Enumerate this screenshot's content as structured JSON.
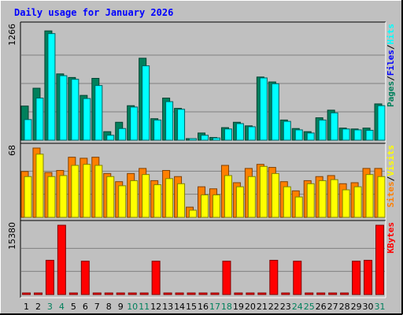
{
  "chart_data": {
    "type": "bar",
    "title": "Daily usage for January 2026",
    "days": [
      "1",
      "2",
      "3",
      "4",
      "5",
      "6",
      "7",
      "8",
      "9",
      "10",
      "11",
      "12",
      "13",
      "14",
      "15",
      "16",
      "17",
      "18",
      "19",
      "20",
      "21",
      "22",
      "23",
      "24",
      "25",
      "26",
      "27",
      "28",
      "29",
      "30",
      "31"
    ],
    "weekend_days": [
      "3",
      "4",
      "10",
      "11",
      "17",
      "18",
      "24",
      "25",
      "31"
    ],
    "colors": {
      "title": "#0000ff",
      "pages": "#00805c",
      "files": "#0000ff",
      "hits": "#00ffff",
      "sites": "#ff8000",
      "visits": "#ffff00",
      "kbytes": "#ff0000",
      "weekend": "#00805c"
    },
    "panels": [
      {
        "id": "usage",
        "max_label": "1266",
        "ylim": [
          0,
          1266
        ],
        "series_labels": [
          "Pages",
          "Files",
          "Hits"
        ],
        "series": [
          {
            "name": "Pages",
            "values": [
              381,
              580,
              1220,
              740,
              700,
              500,
              690,
              95,
              200,
              385,
              915,
              240,
              470,
              355,
              0,
              80,
              30,
              140,
              200,
              160,
              705,
              650,
              225,
              130,
              95,
              250,
              335,
              135,
              125,
              135,
              405
            ]
          },
          {
            "name": "Files",
            "values": [
              0,
              0,
              0,
              0,
              0,
              0,
              0,
              0,
              0,
              0,
              0,
              0,
              0,
              0,
              0,
              0,
              0,
              0,
              0,
              0,
              0,
              0,
              0,
              0,
              0,
              0,
              0,
              0,
              0,
              0,
              0
            ]
          },
          {
            "name": "Hits",
            "values": [
              230,
              470,
              1190,
              720,
              680,
              465,
              610,
              55,
              130,
              370,
              830,
              225,
              430,
              345,
              15,
              55,
              25,
              125,
              185,
              150,
              695,
              630,
              210,
              115,
              80,
              225,
              305,
              125,
              115,
              110,
              385
            ]
          }
        ]
      },
      {
        "id": "visitors",
        "max_label": "68",
        "ylim": [
          0,
          68
        ],
        "series_labels": [
          "Sites",
          "Visits"
        ],
        "series": [
          {
            "name": "Sites",
            "values": [
              45,
              68,
              44,
              46,
              59,
              58,
              59,
              43,
              35,
              43,
              48,
              36,
              46,
              40,
              10,
              30,
              28,
              51,
              34,
              48,
              52,
              49,
              35,
              26,
              36,
              40,
              41,
              33,
              34,
              48,
              48
            ]
          },
          {
            "name": "Visits",
            "values": [
              40,
              62,
              40,
              41,
              51,
              52,
              51,
              40,
              31,
              36,
              42,
              32,
              38,
              33,
              7,
              22,
              22,
              41,
              30,
              40,
              50,
              43,
              30,
              20,
              33,
              36,
              37,
              27,
              30,
              42,
              40
            ]
          }
        ]
      },
      {
        "id": "kbytes",
        "max_label": "15380",
        "ylim": [
          0,
          15380
        ],
        "series_labels": [
          "KBytes"
        ],
        "series": [
          {
            "name": "KBytes",
            "values": [
              0,
              0,
              7600,
              15380,
              0,
              7400,
              0,
              0,
              0,
              0,
              300,
              7400,
              0,
              0,
              0,
              0,
              0,
              7400,
              0,
              0,
              0,
              7600,
              0,
              7400,
              0,
              0,
              0,
              0,
              7400,
              7600,
              15380
            ]
          }
        ]
      }
    ]
  }
}
